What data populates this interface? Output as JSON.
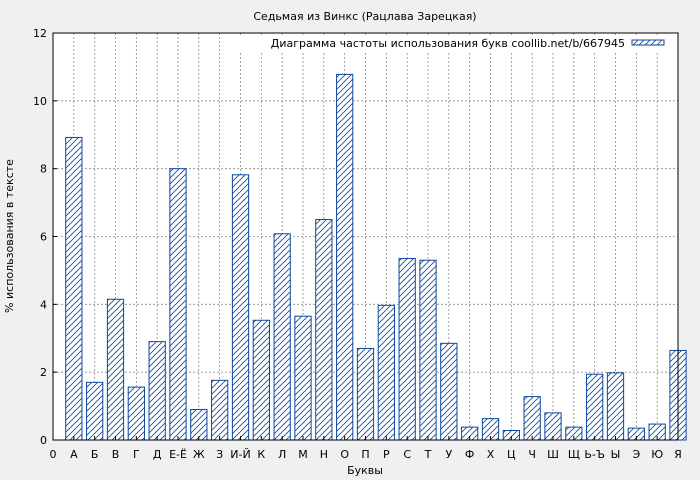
{
  "chart_data": {
    "type": "bar",
    "title": "Седьмая из Винкс (Рацлава Зарецкая)",
    "xlabel": "Буквы",
    "ylabel": "% использования в тексте",
    "legend": {
      "label": "Диаграмма частоты использования букв coollib.net/b/667945",
      "placement": "top-right"
    },
    "ylim": [
      0,
      12
    ],
    "yticks": [
      0,
      2,
      4,
      6,
      8,
      10,
      12
    ],
    "x_origin_label": "0",
    "grid": true,
    "bar_color": "#0d47a1",
    "categories": [
      "А",
      "Б",
      "В",
      "Г",
      "Д",
      "Е-Ё",
      "Ж",
      "З",
      "И-Й",
      "К",
      "Л",
      "М",
      "Н",
      "О",
      "П",
      "Р",
      "С",
      "Т",
      "У",
      "Ф",
      "Х",
      "Ц",
      "Ч",
      "Ш",
      "Щ",
      "Ь-Ъ",
      "Ы",
      "Э",
      "Ю",
      "Я"
    ],
    "series": [
      {
        "values": [
          8.92,
          1.7,
          4.15,
          1.56,
          2.9,
          8.0,
          0.9,
          1.76,
          7.82,
          3.53,
          6.08,
          3.65,
          6.5,
          10.78,
          2.7,
          3.97,
          5.35,
          5.3,
          2.85,
          0.38,
          0.63,
          0.28,
          1.28,
          0.8,
          0.38,
          1.94,
          1.98,
          0.35,
          0.47,
          2.64
        ]
      }
    ]
  }
}
